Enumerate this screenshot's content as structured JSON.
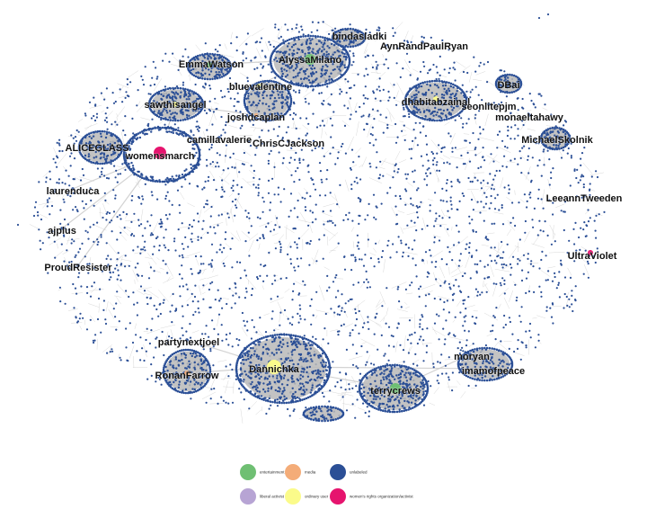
{
  "graph": {
    "colors": {
      "entertainment": "#6fbf73",
      "media": "#f4ac78",
      "unlabeled": "#2b4f96",
      "liberal_activist": "#b7a4d4",
      "ordinary_user": "#fbfb8a",
      "womens_rights": "#e6146e",
      "edge": "#c8c8c8",
      "cluster_fill": "#b9b9b9"
    },
    "accounts": [
      {
        "label": "bindasladki",
        "category": "unlabeled"
      },
      {
        "label": "AynRandPaulRyan",
        "category": "unlabeled"
      },
      {
        "label": "EmmaWatson",
        "category": "entertainment"
      },
      {
        "label": "AlyssaMilano",
        "category": "entertainment"
      },
      {
        "label": "DBai",
        "category": "unlabeled"
      },
      {
        "label": "bluevalentine",
        "category": "ordinary_user"
      },
      {
        "label": "dhabitabzainal",
        "category": "ordinary_user"
      },
      {
        "label": "seonlitepjm",
        "category": "unlabeled"
      },
      {
        "label": "sawthisangel",
        "category": "ordinary_user"
      },
      {
        "label": "monaeltahawy",
        "category": "unlabeled"
      },
      {
        "label": "joshdcaplan",
        "category": "media"
      },
      {
        "label": "camillavalerie",
        "category": "unlabeled"
      },
      {
        "label": "MichaelSkolnik",
        "category": "unlabeled"
      },
      {
        "label": "ChrisCJackson",
        "category": "unlabeled"
      },
      {
        "label": "ALICEGLASS",
        "category": "unlabeled"
      },
      {
        "label": "womensmarch",
        "category": "womens_rights"
      },
      {
        "label": "laurenduca",
        "category": "unlabeled"
      },
      {
        "label": "LeeannTweeden",
        "category": "unlabeled"
      },
      {
        "label": "ajplus",
        "category": "unlabeled"
      },
      {
        "label": "UltraViolet",
        "category": "womens_rights"
      },
      {
        "label": "ProudResister",
        "category": "unlabeled"
      },
      {
        "label": "partynextjoel",
        "category": "unlabeled"
      },
      {
        "label": "RonanFarrow",
        "category": "media"
      },
      {
        "label": "Dannichka",
        "category": "ordinary_user"
      },
      {
        "label": "moryan",
        "category": "unlabeled"
      },
      {
        "label": "imamofpeace",
        "category": "unlabeled"
      },
      {
        "label": "terrycrews",
        "category": "entertainment"
      }
    ]
  },
  "legend": {
    "items": [
      {
        "label": "entertainment",
        "color": "#6fbf73"
      },
      {
        "label": "media",
        "color": "#f4ac78"
      },
      {
        "label": "unlabeled",
        "color": "#2b4f96"
      },
      {
        "label": "liberal activist",
        "color": "#b7a4d4"
      },
      {
        "label": "ordinary user",
        "color": "#fbfb8a"
      },
      {
        "label": "women's rights organization/activist",
        "color": "#e6146e"
      }
    ]
  }
}
